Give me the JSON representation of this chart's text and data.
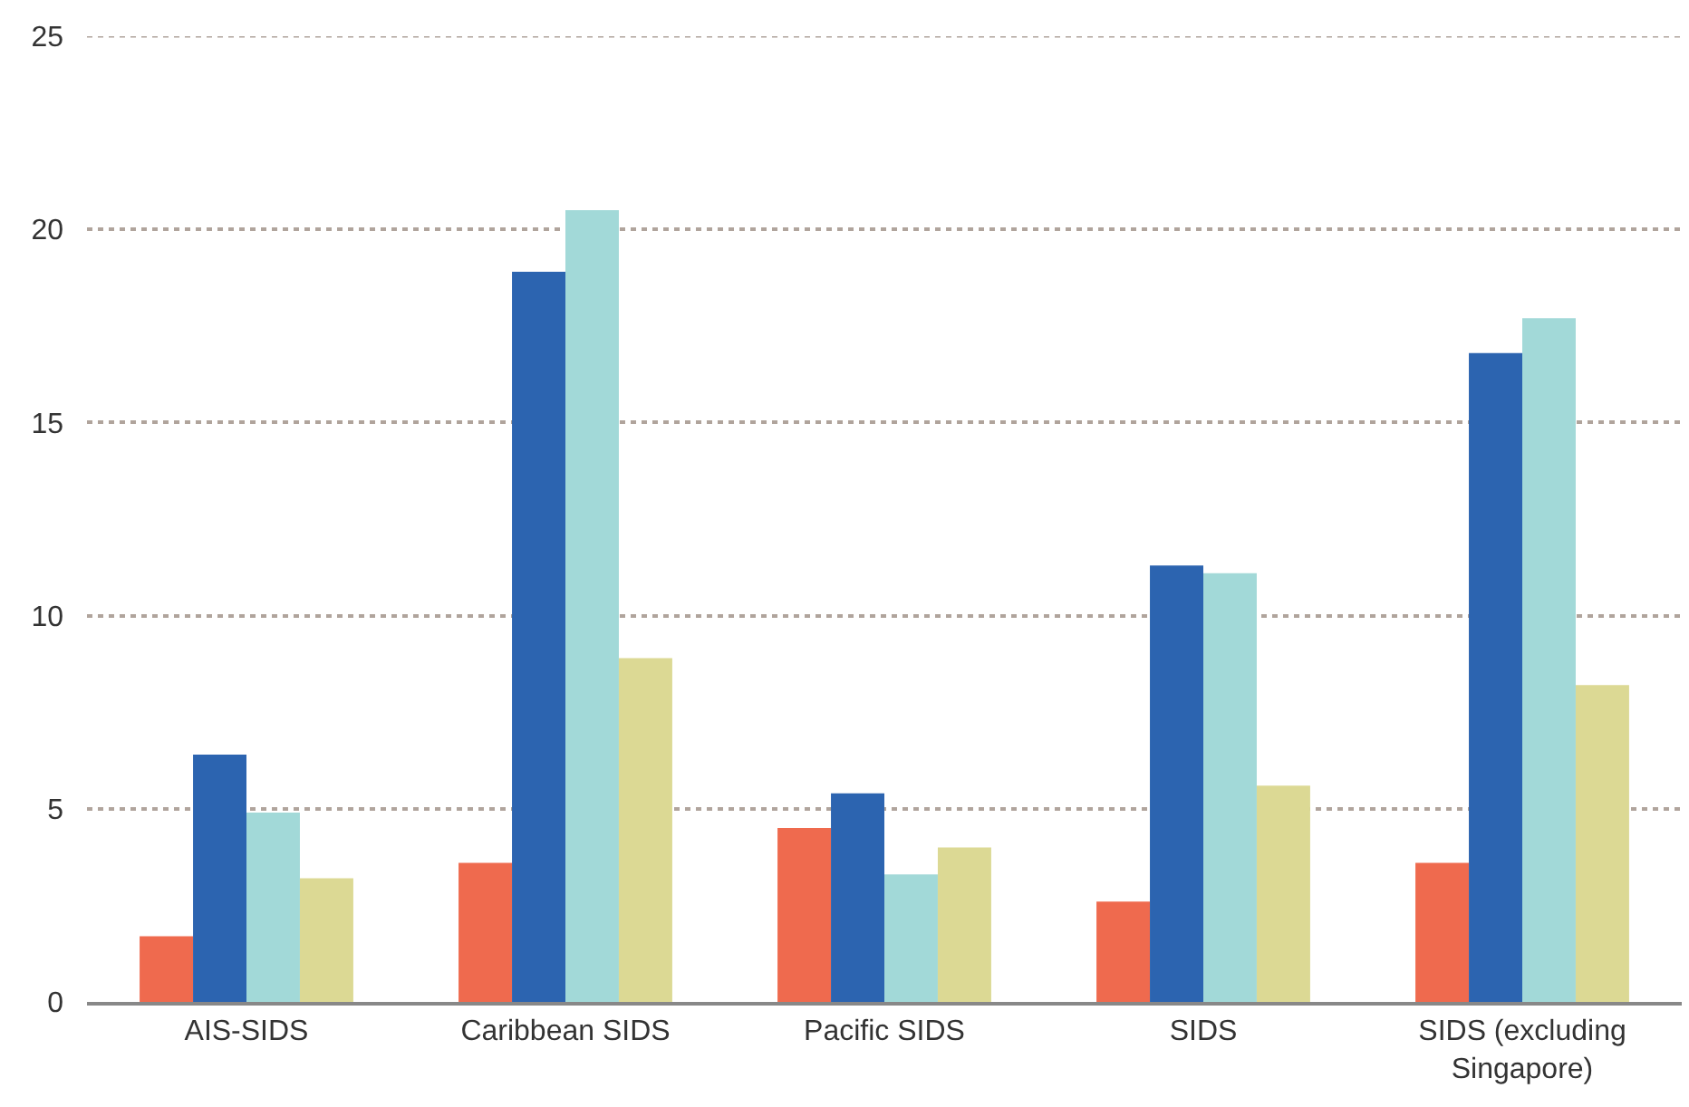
{
  "chart_data": {
    "type": "bar",
    "categories": [
      "AIS-SIDS",
      "Caribbean SIDS",
      "Pacific SIDS",
      "SIDS",
      "SIDS (excluding Singapore)"
    ],
    "series": [
      {
        "color": "#ef6a4e",
        "values": [
          1.7,
          3.6,
          4.5,
          2.6,
          3.6
        ]
      },
      {
        "color": "#2c64b0",
        "values": [
          6.4,
          18.9,
          5.4,
          11.3,
          16.8
        ]
      },
      {
        "color": "#a2d9d8",
        "values": [
          4.9,
          20.5,
          3.3,
          11.1,
          17.7
        ]
      },
      {
        "color": "#dcd994",
        "values": [
          3.2,
          8.9,
          4.0,
          5.6,
          8.2
        ]
      }
    ],
    "ylim": [
      0,
      25
    ],
    "yticks": [
      0,
      5,
      10,
      15,
      20,
      25
    ],
    "grid": "y"
  }
}
